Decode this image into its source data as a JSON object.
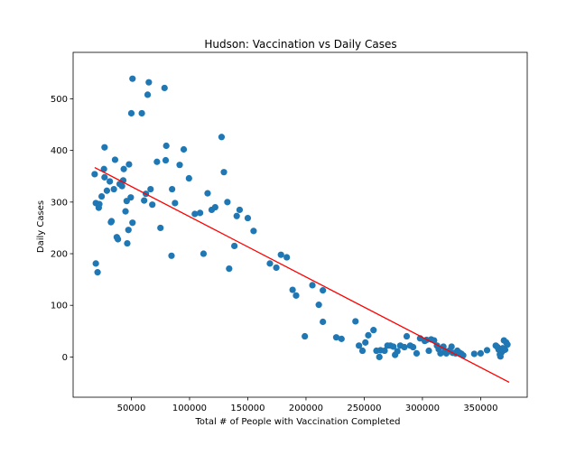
{
  "chart_data": {
    "type": "scatter",
    "title": "Hudson: Vaccination vs Daily Cases",
    "xlabel": "Total # of People with Vaccination Completed",
    "ylabel": "Daily Cases",
    "xlim": [
      0,
      390000
    ],
    "ylim": [
      -78,
      590
    ],
    "x_ticks": [
      {
        "value": 50000,
        "label": "50000"
      },
      {
        "value": 100000,
        "label": "100000"
      },
      {
        "value": 150000,
        "label": "150000"
      },
      {
        "value": 200000,
        "label": "200000"
      },
      {
        "value": 250000,
        "label": "250000"
      },
      {
        "value": 300000,
        "label": "300000"
      },
      {
        "value": 350000,
        "label": "350000"
      }
    ],
    "y_ticks": [
      {
        "value": 0,
        "label": "0"
      },
      {
        "value": 100,
        "label": "100"
      },
      {
        "value": 200,
        "label": "200"
      },
      {
        "value": 300,
        "label": "300"
      },
      {
        "value": 400,
        "label": "400"
      },
      {
        "value": 500,
        "label": "500"
      }
    ],
    "grid": false,
    "series": [
      {
        "kind": "points",
        "color": "#1f77b4",
        "points": [
          [
            18500,
            354
          ],
          [
            19500,
            298
          ],
          [
            19500,
            181
          ],
          [
            21000,
            164
          ],
          [
            22000,
            289
          ],
          [
            22500,
            296
          ],
          [
            24500,
            311
          ],
          [
            26500,
            364
          ],
          [
            27000,
            406
          ],
          [
            27000,
            348
          ],
          [
            29000,
            322
          ],
          [
            31500,
            340
          ],
          [
            32500,
            261
          ],
          [
            33000,
            263
          ],
          [
            35000,
            325
          ],
          [
            36000,
            382
          ],
          [
            37500,
            232
          ],
          [
            38500,
            228
          ],
          [
            40000,
            335
          ],
          [
            42000,
            331
          ],
          [
            43000,
            342
          ],
          [
            43500,
            364
          ],
          [
            45000,
            282
          ],
          [
            46000,
            302
          ],
          [
            46500,
            220
          ],
          [
            47500,
            246
          ],
          [
            48000,
            373
          ],
          [
            49500,
            309
          ],
          [
            50000,
            472
          ],
          [
            51000,
            539
          ],
          [
            51000,
            260
          ],
          [
            59000,
            472
          ],
          [
            61000,
            303
          ],
          [
            62500,
            316
          ],
          [
            64000,
            508
          ],
          [
            65000,
            532
          ],
          [
            66500,
            325
          ],
          [
            68000,
            295
          ],
          [
            72000,
            378
          ],
          [
            75000,
            250
          ],
          [
            78500,
            521
          ],
          [
            79500,
            381
          ],
          [
            80000,
            409
          ],
          [
            84500,
            196
          ],
          [
            85000,
            325
          ],
          [
            87500,
            298
          ],
          [
            91500,
            372
          ],
          [
            95000,
            402
          ],
          [
            99500,
            346
          ],
          [
            104500,
            277
          ],
          [
            109000,
            279
          ],
          [
            112000,
            200
          ],
          [
            115500,
            317
          ],
          [
            119000,
            285
          ],
          [
            122000,
            290
          ],
          [
            127500,
            426
          ],
          [
            129500,
            358
          ],
          [
            132500,
            300
          ],
          [
            134000,
            171
          ],
          [
            138500,
            215
          ],
          [
            140500,
            273
          ],
          [
            143000,
            285
          ],
          [
            150000,
            269
          ],
          [
            155000,
            244
          ],
          [
            169000,
            181
          ],
          [
            174500,
            173
          ],
          [
            178500,
            198
          ],
          [
            183500,
            193
          ],
          [
            188500,
            130
          ],
          [
            191500,
            119
          ],
          [
            199000,
            40
          ],
          [
            205500,
            139
          ],
          [
            211000,
            101
          ],
          [
            214500,
            68
          ],
          [
            214500,
            129
          ],
          [
            226000,
            38
          ],
          [
            230500,
            35
          ],
          [
            242500,
            69
          ],
          [
            245500,
            22
          ],
          [
            248500,
            12
          ],
          [
            251000,
            28
          ],
          [
            253500,
            42
          ],
          [
            258000,
            52
          ],
          [
            260500,
            12
          ],
          [
            263000,
            0
          ],
          [
            264000,
            13
          ],
          [
            267500,
            12
          ],
          [
            270000,
            22
          ],
          [
            272500,
            22
          ],
          [
            275000,
            20
          ],
          [
            276500,
            4
          ],
          [
            278500,
            11
          ],
          [
            281000,
            22
          ],
          [
            284500,
            19
          ],
          [
            286500,
            40
          ],
          [
            289500,
            22
          ],
          [
            292000,
            19
          ],
          [
            295000,
            7
          ],
          [
            298000,
            36
          ],
          [
            302000,
            31
          ],
          [
            303500,
            33
          ],
          [
            305500,
            12
          ],
          [
            307500,
            34
          ],
          [
            310000,
            32
          ],
          [
            312500,
            22
          ],
          [
            314000,
            15
          ],
          [
            315500,
            7
          ],
          [
            318000,
            20
          ],
          [
            319500,
            11
          ],
          [
            320500,
            7
          ],
          [
            323000,
            12
          ],
          [
            325000,
            20
          ],
          [
            326000,
            8
          ],
          [
            328500,
            7
          ],
          [
            330000,
            12
          ],
          [
            332000,
            8
          ],
          [
            333500,
            6
          ],
          [
            335000,
            3
          ],
          [
            344500,
            6
          ],
          [
            350000,
            7
          ],
          [
            355500,
            13
          ],
          [
            363000,
            22
          ],
          [
            364500,
            19
          ],
          [
            365500,
            14
          ],
          [
            366500,
            5
          ],
          [
            367000,
            1
          ],
          [
            368000,
            9
          ],
          [
            369000,
            17
          ],
          [
            369500,
            13
          ],
          [
            370000,
            32
          ],
          [
            371000,
            14
          ],
          [
            372000,
            28
          ],
          [
            373000,
            24
          ]
        ]
      },
      {
        "kind": "fit_line",
        "color": "#ff0000",
        "points": [
          [
            18500,
            367
          ],
          [
            374500,
            -49
          ]
        ]
      }
    ]
  }
}
